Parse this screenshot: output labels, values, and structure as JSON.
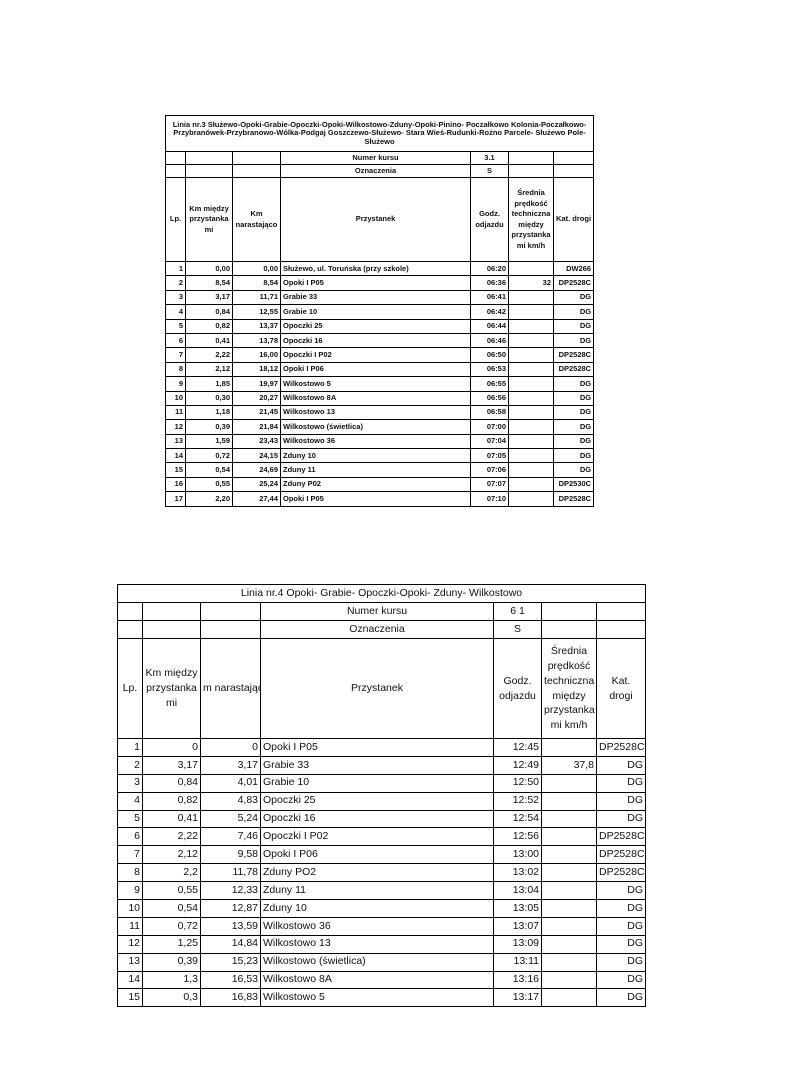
{
  "tables": [
    {
      "title": "Linia nr.3 Służewo-Opoki-Grabie-Opoczki-Opoki-Wilkostowo-Zduny-Opoki-Pinino- Poczałkowo Kolonia-Poczałkowo-Przybranówek-Przybranowo-Wólka-Podgaj Goszczewo-Służewo- Stara Wieś-Rudunki-Rożno Parcele- Służewo Pole-Służewo",
      "course_label": "Numer kursu",
      "course": "3.1",
      "marks_label": "Oznaczenia",
      "marks": "S",
      "headers": [
        "Lp.",
        "Km między przystanka mi",
        "Km narastająco",
        "Przystanek",
        "Godz. odjazdu",
        "Średnia prędkość techniczna między przystanka mi km/h",
        "Kat. drogi"
      ],
      "rows": [
        {
          "lp": "1",
          "km": "0,00",
          "total": "0,00",
          "stop": "Służewo, ul. Toruńska (przy szkole)",
          "time": "06:20",
          "cat": "DW266"
        },
        {
          "lp": "2",
          "km": "8,54",
          "total": "8,54",
          "stop": "Opoki I P05",
          "time": "06:36",
          "speed": "32",
          "cat": "DP2528C"
        },
        {
          "lp": "3",
          "km": "3,17",
          "total": "11,71",
          "stop": "Grabie 33",
          "time": "06:41",
          "cat": "DG"
        },
        {
          "lp": "4",
          "km": "0,84",
          "total": "12,55",
          "stop": "Grabie 10",
          "time": "06:42",
          "cat": "DG"
        },
        {
          "lp": "5",
          "km": "0,82",
          "total": "13,37",
          "stop": "Opoczki 25",
          "time": "06:44",
          "cat": "DG"
        },
        {
          "lp": "6",
          "km": "0,41",
          "total": "13,78",
          "stop": "Opoczki 16",
          "time": "06:46",
          "cat": "DG"
        },
        {
          "lp": "7",
          "km": "2,22",
          "total": "16,00",
          "stop": "Opoczki I P02",
          "time": "06:50",
          "cat": "DP2528C"
        },
        {
          "lp": "8",
          "km": "2,12",
          "total": "18,12",
          "stop": "Opoki I P06",
          "time": "06:53",
          "cat": "DP2528C"
        },
        {
          "lp": "9",
          "km": "1,85",
          "total": "19,97",
          "stop": "Wilkostowo 5",
          "time": "06:55",
          "cat": "DG"
        },
        {
          "lp": "10",
          "km": "0,30",
          "total": "20,27",
          "stop": "Wilkostowo 8A",
          "time": "06:56",
          "cat": "DG"
        },
        {
          "lp": "11",
          "km": "1,18",
          "total": "21,45",
          "stop": "Wilkostowo 13",
          "time": "06:58",
          "cat": "DG"
        },
        {
          "lp": "12",
          "km": "0,39",
          "total": "21,84",
          "stop": "Wilkostowo (świetlica)",
          "time": "07:00",
          "cat": "DG"
        },
        {
          "lp": "13",
          "km": "1,59",
          "total": "23,43",
          "stop": "Wilkostowo 36",
          "time": "07:04",
          "cat": "DG"
        },
        {
          "lp": "14",
          "km": "0,72",
          "total": "24,15",
          "stop": "Zduny 10",
          "time": "07:05",
          "cat": "DG"
        },
        {
          "lp": "15",
          "km": "0,54",
          "total": "24,69",
          "stop": "Zduny 11",
          "time": "07:06",
          "cat": "DG"
        },
        {
          "lp": "16",
          "km": "0,55",
          "total": "25,24",
          "stop": "Zduny P02",
          "time": "07:07",
          "cat": "DP2530C"
        },
        {
          "lp": "17",
          "km": "2,20",
          "total": "27,44",
          "stop": "Opoki I P05",
          "time": "07:10",
          "cat": "DP2528C"
        }
      ]
    },
    {
      "title": "Linia nr.4 Opoki- Grabie- Opoczki-Opoki- Zduny- Wilkostowo",
      "course_label": "Numer kursu",
      "course": "6 1",
      "marks_label": "Oznaczenia",
      "marks": "S",
      "headers": [
        "Lp.",
        "Km między przystanka mi",
        "m narastając",
        "Przystanek",
        "Godz. odjazdu",
        "Średnia prędkość techniczna między przystanka mi km/h",
        "Kat. drogi"
      ],
      "rows": [
        {
          "lp": "1",
          "km": "0",
          "total": "0",
          "stop": "Opoki I P05",
          "time": "12:45",
          "cat": "DP2528C"
        },
        {
          "lp": "2",
          "km": "3,17",
          "total": "3,17",
          "stop": "Grabie 33",
          "time": "12:49",
          "speed": "37,8",
          "cat": "DG"
        },
        {
          "lp": "3",
          "km": "0,84",
          "total": "4,01",
          "stop": "Grabie 10",
          "time": "12:50",
          "cat": "DG"
        },
        {
          "lp": "4",
          "km": "0,82",
          "total": "4,83",
          "stop": "Opoczki 25",
          "time": "12:52",
          "cat": "DG"
        },
        {
          "lp": "5",
          "km": "0,41",
          "total": "5,24",
          "stop": "Opoczki 16",
          "time": "12:54",
          "cat": "DG"
        },
        {
          "lp": "6",
          "km": "2,22",
          "total": "7,46",
          "stop": "Opoczki I P02",
          "time": "12:56",
          "cat": "DP2528C"
        },
        {
          "lp": "7",
          "km": "2,12",
          "total": "9,58",
          "stop": "Opoki I P06",
          "time": "13:00",
          "cat": "DP2528C"
        },
        {
          "lp": "8",
          "km": "2,2",
          "total": "11,78",
          "stop": "Zduny PO2",
          "time": "13:02",
          "cat": "DP2528C"
        },
        {
          "lp": "9",
          "km": "0,55",
          "total": "12,33",
          "stop": "Zduny 11",
          "time": "13:04",
          "cat": "DG"
        },
        {
          "lp": "10",
          "km": "0,54",
          "total": "12,87",
          "stop": "Zduny 10",
          "time": "13:05",
          "cat": "DG"
        },
        {
          "lp": "11",
          "km": "0,72",
          "total": "13,59",
          "stop": "Wilkostowo 36",
          "time": "13:07",
          "cat": "DG"
        },
        {
          "lp": "12",
          "km": "1,25",
          "total": "14,84",
          "stop": "Wilkostowo 13",
          "time": "13:09",
          "cat": "DG"
        },
        {
          "lp": "13",
          "km": "0,39",
          "total": "15,23",
          "stop": "Wilkostowo (świetlica)",
          "time": "13:11",
          "cat": "DG"
        },
        {
          "lp": "14",
          "km": "1,3",
          "total": "16,53",
          "stop": "Wilkostowo 8A",
          "time": "13:16",
          "cat": "DG"
        },
        {
          "lp": "15",
          "km": "0,3",
          "total": "16,83",
          "stop": "Wilkostowo 5",
          "time": "13:17",
          "cat": "DG"
        }
      ]
    }
  ]
}
